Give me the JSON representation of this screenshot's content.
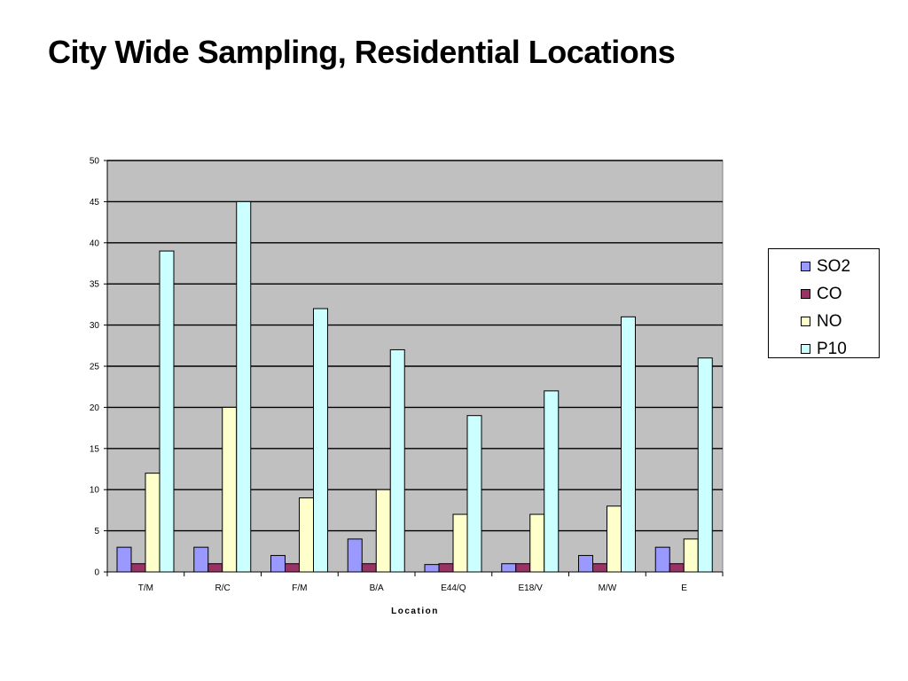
{
  "slide": {
    "title": "City Wide Sampling, Residential Locations"
  },
  "chart_data": {
    "type": "bar",
    "title": "",
    "xlabel": "Location",
    "ylabel": "",
    "categories": [
      "T/M",
      "R/C",
      "F/M",
      "B/A",
      "E44/Q",
      "E18/V",
      "M/W",
      "E"
    ],
    "series": [
      {
        "name": "SO2",
        "color": "#9999ff",
        "values": [
          3,
          3,
          2,
          4,
          0.9,
          1,
          2,
          3
        ]
      },
      {
        "name": "CO",
        "color": "#993366",
        "values": [
          1,
          1,
          1,
          1,
          1,
          1,
          1,
          1
        ]
      },
      {
        "name": "NO",
        "color": "#ffffcc",
        "values": [
          12,
          20,
          9,
          10,
          7,
          7,
          8,
          4
        ]
      },
      {
        "name": "P10",
        "color": "#ccffff",
        "values": [
          39,
          45,
          32,
          27,
          19,
          22,
          31,
          26
        ]
      }
    ],
    "ylim": [
      0,
      50
    ],
    "yticks": [
      0,
      5,
      10,
      15,
      20,
      25,
      30,
      35,
      40,
      45,
      50
    ],
    "grid": true,
    "plot_background": "#c0c0c0",
    "legend_position": "right"
  }
}
